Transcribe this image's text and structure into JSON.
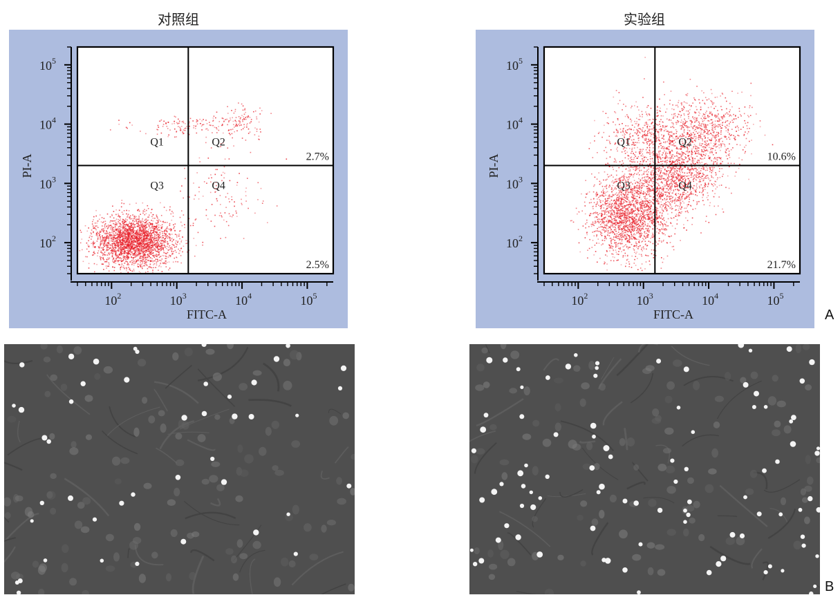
{
  "panel_labels": {
    "a": "A",
    "b": "B"
  },
  "chart_data": [
    {
      "type": "scatter",
      "title": "对照组",
      "xlabel": "FITC-A",
      "ylabel": "PI-A",
      "x_scale": "log",
      "y_scale": "log",
      "xlim": [
        30,
        250000
      ],
      "ylim": [
        30,
        200000
      ],
      "x_ticks": [
        {
          "value": 100,
          "base": "10",
          "exp": "2"
        },
        {
          "value": 1000,
          "base": "10",
          "exp": "3"
        },
        {
          "value": 10000,
          "base": "10",
          "exp": "4"
        },
        {
          "value": 100000,
          "base": "10",
          "exp": "5"
        }
      ],
      "y_ticks": [
        {
          "value": 100,
          "base": "10",
          "exp": "2"
        },
        {
          "value": 1000,
          "base": "10",
          "exp": "3"
        },
        {
          "value": 10000,
          "base": "10",
          "exp": "4"
        },
        {
          "value": 100000,
          "base": "10",
          "exp": "5"
        }
      ],
      "gate": {
        "x": 1500,
        "y": 2000
      },
      "quadrants": [
        "Q1",
        "Q2",
        "Q3",
        "Q4"
      ],
      "percentages": {
        "Q2": "2.7%",
        "Q4": "2.5%"
      },
      "point_color": "#e8202a",
      "clusters": [
        {
          "cx": 220,
          "cy": 110,
          "sx": 0.3,
          "sy": 0.22,
          "n": 2600
        },
        {
          "cx": 1200,
          "cy": 9500,
          "sx": 0.35,
          "sy": 0.08,
          "n": 110
        },
        {
          "cx": 9000,
          "cy": 11000,
          "sx": 0.22,
          "sy": 0.14,
          "n": 120
        },
        {
          "cx": 4500,
          "cy": 700,
          "sx": 0.3,
          "sy": 0.4,
          "n": 120
        }
      ]
    },
    {
      "type": "scatter",
      "title": "实验组",
      "xlabel": "FITC-A",
      "ylabel": "PI-A",
      "x_scale": "log",
      "y_scale": "log",
      "xlim": [
        30,
        250000
      ],
      "ylim": [
        30,
        200000
      ],
      "x_ticks": [
        {
          "value": 100,
          "base": "10",
          "exp": "2"
        },
        {
          "value": 1000,
          "base": "10",
          "exp": "3"
        },
        {
          "value": 10000,
          "base": "10",
          "exp": "4"
        },
        {
          "value": 100000,
          "base": "10",
          "exp": "5"
        }
      ],
      "y_ticks": [
        {
          "value": 100,
          "base": "10",
          "exp": "2"
        },
        {
          "value": 1000,
          "base": "10",
          "exp": "3"
        },
        {
          "value": 10000,
          "base": "10",
          "exp": "4"
        },
        {
          "value": 100000,
          "base": "10",
          "exp": "5"
        }
      ],
      "gate": {
        "x": 1500,
        "y": 2000
      },
      "quadrants": [
        "Q1",
        "Q2",
        "Q3",
        "Q4"
      ],
      "percentages": {
        "Q2": "10.6%",
        "Q4": "21.7%"
      },
      "point_color": "#e8202a",
      "clusters": [
        {
          "cx": 600,
          "cy": 300,
          "sx": 0.3,
          "sy": 0.35,
          "n": 1900
        },
        {
          "cx": 3000,
          "cy": 1500,
          "sx": 0.35,
          "sy": 0.35,
          "n": 1300
        },
        {
          "cx": 9000,
          "cy": 8000,
          "sx": 0.35,
          "sy": 0.3,
          "n": 700
        },
        {
          "cx": 900,
          "cy": 6000,
          "sx": 0.3,
          "sy": 0.3,
          "n": 400
        }
      ]
    }
  ],
  "micrographs": [
    {
      "name": "control",
      "bright_cells": 45,
      "dim_cells": 120
    },
    {
      "name": "experiment",
      "bright_cells": 95,
      "dim_cells": 110
    }
  ]
}
